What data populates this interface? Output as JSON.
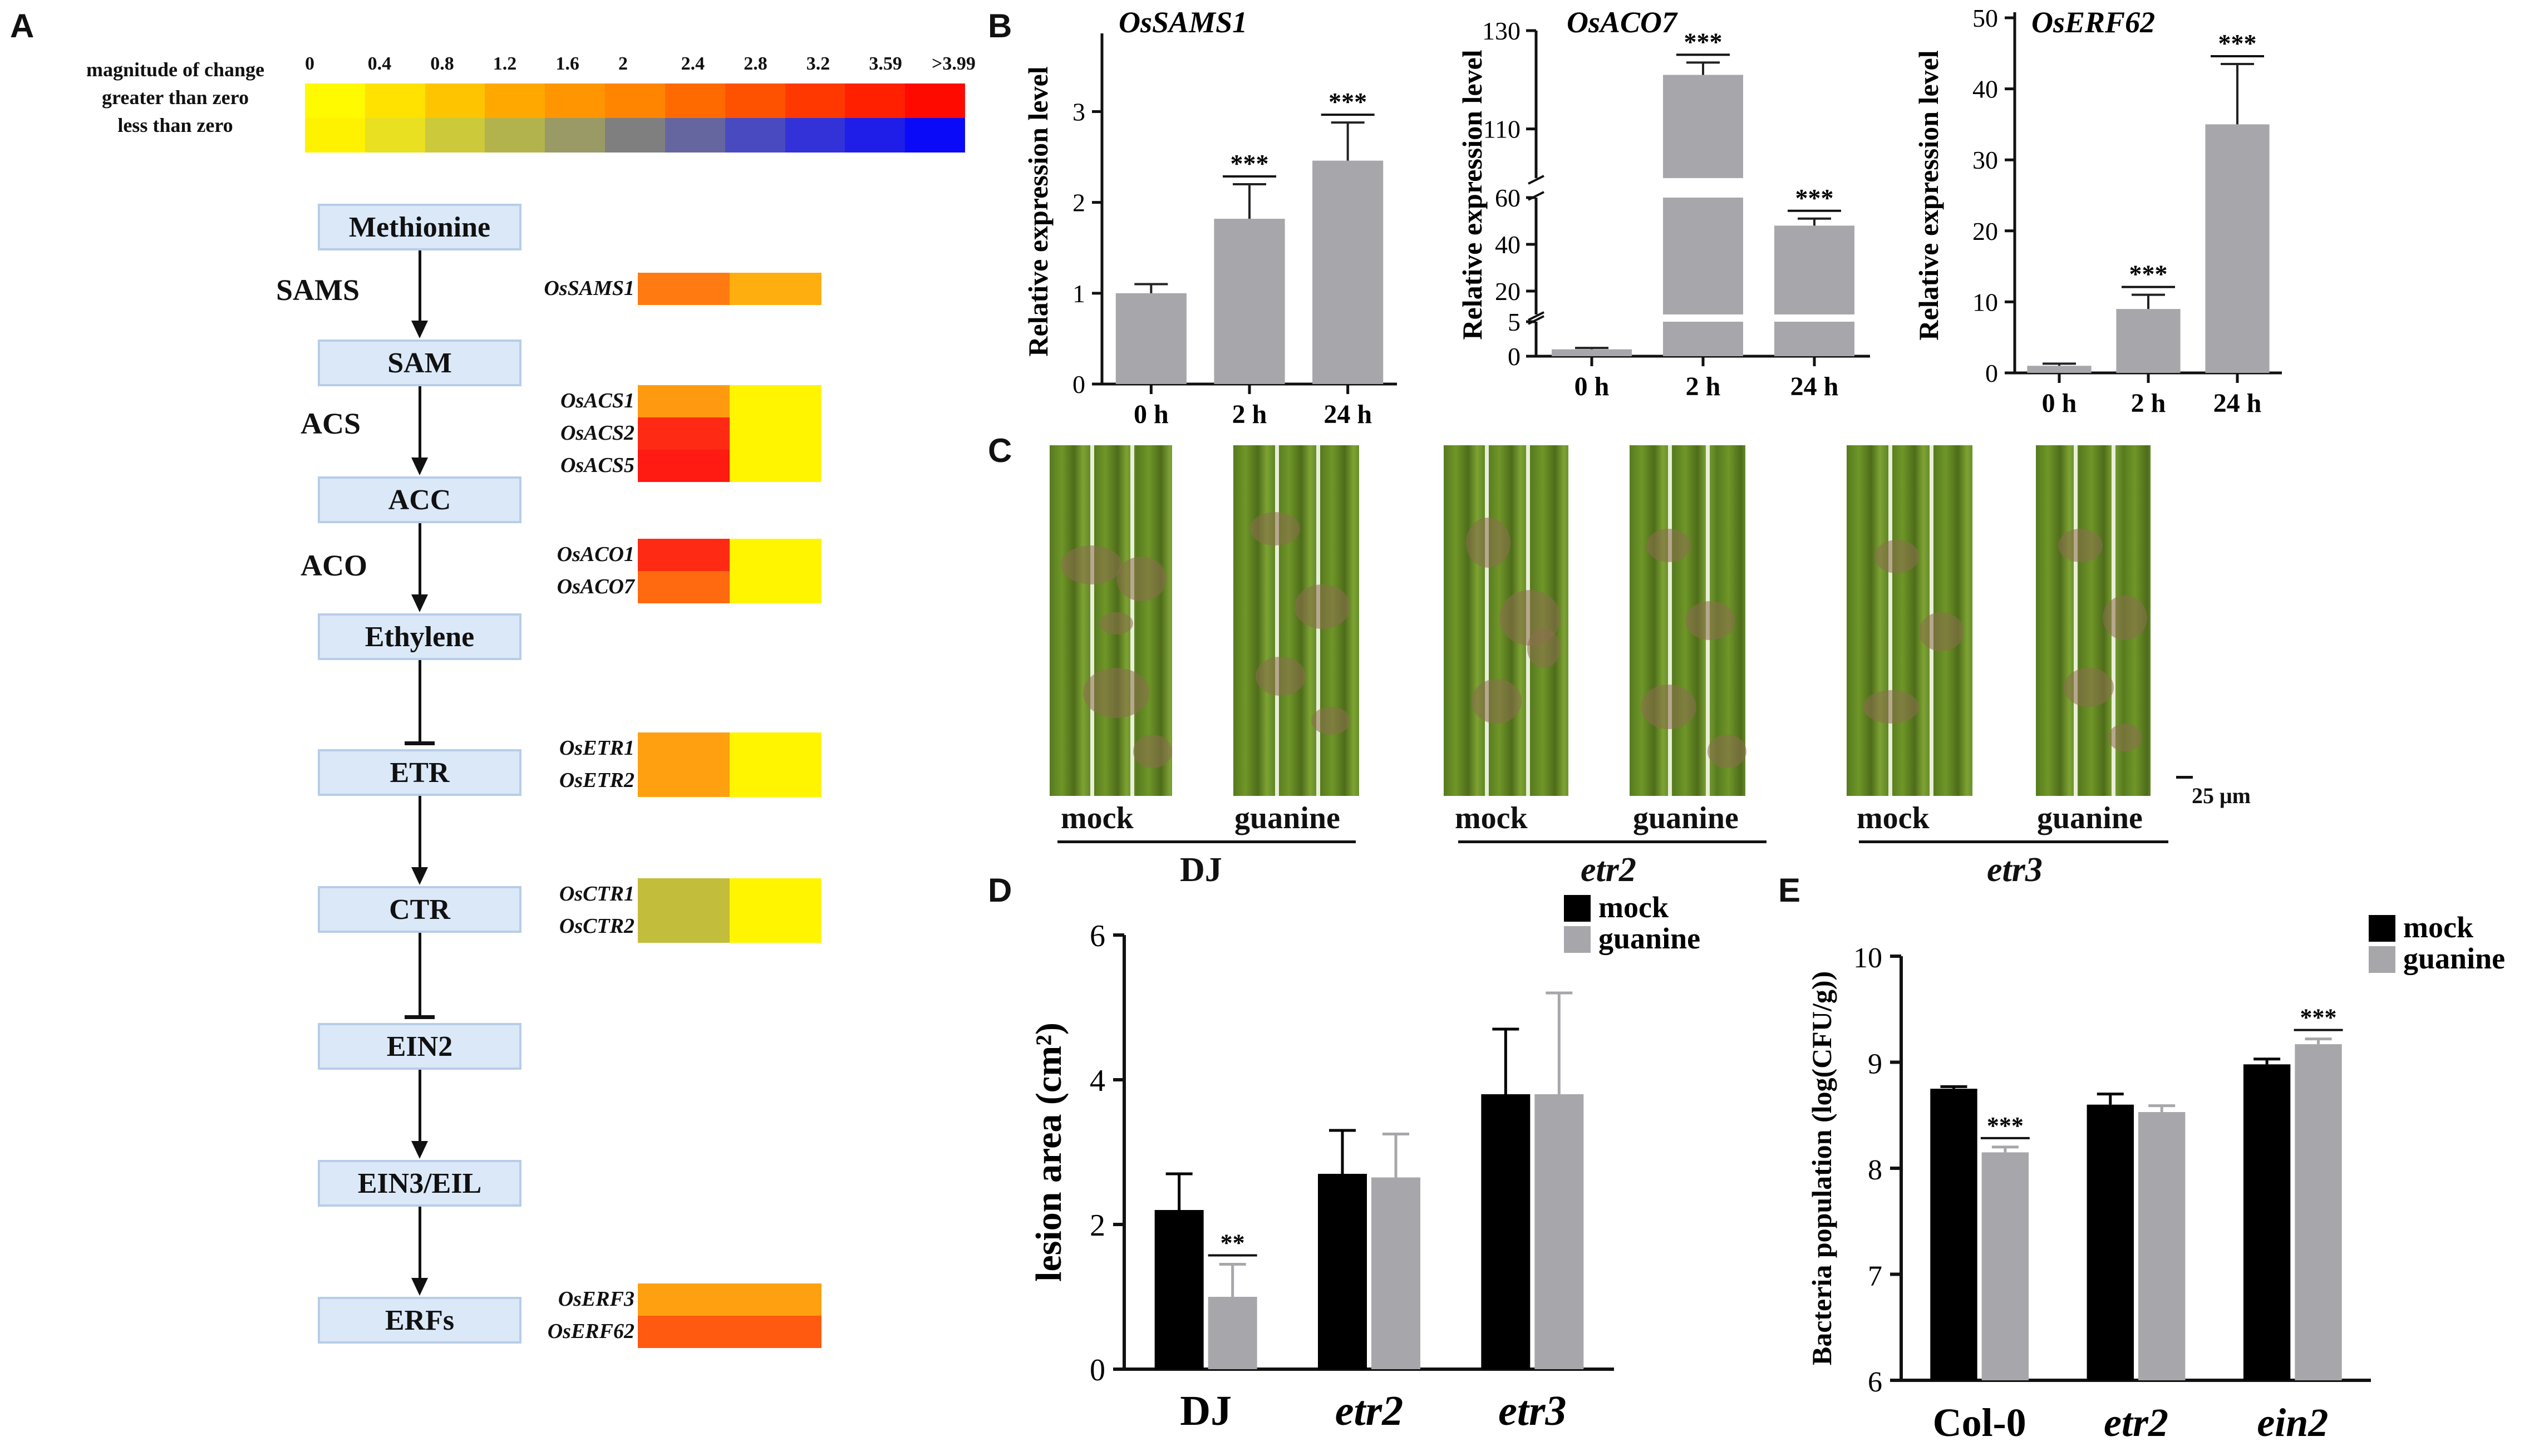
{
  "panels": {
    "a": "A",
    "b": "B",
    "c": "C",
    "d": "D",
    "e": "E"
  },
  "legend": {
    "title": "magnitude of change",
    "row_gt": "greater than zero",
    "row_lt": "less than zero",
    "scale": [
      "0",
      "0.4",
      "0.8",
      "1.2",
      "1.6",
      "2",
      "2.4",
      "2.8",
      "3.2",
      "3.59",
      ">3.99"
    ],
    "colors_gt": [
      "#fffa00",
      "#ffe200",
      "#ffc400",
      "#ffa800",
      "#ff9500",
      "#ff8400",
      "#ff6a00",
      "#ff5200",
      "#ff3800",
      "#ff2000",
      "#ff0a00"
    ],
    "colors_lt": [
      "#fff200",
      "#e8e020",
      "#ccc93a",
      "#b3b34e",
      "#9a9a66",
      "#7f7f80",
      "#6565a0",
      "#4a4ac0",
      "#3232d8",
      "#1e1ee8",
      "#0a0af8"
    ]
  },
  "pathway": {
    "nodes": [
      "Methionine",
      "SAM",
      "ACC",
      "Ethylene",
      "ETR",
      "CTR",
      "EIN2",
      "EIN3/EIL",
      "ERFs"
    ],
    "enzymes": [
      "SAMS",
      "ACS",
      "ACO"
    ],
    "heatmaps": [
      {
        "genes": [
          "OsSAMS1"
        ],
        "colors": [
          [
            "#ff7a10",
            "#ffae10"
          ]
        ]
      },
      {
        "genes": [
          "OsACS1",
          "OsACS2",
          "OsACS5"
        ],
        "colors": [
          [
            "#ff9a10",
            "#fff500"
          ],
          [
            "#ff2a14",
            "#fff500"
          ],
          [
            "#ff1a12",
            "#fff500"
          ]
        ]
      },
      {
        "genes": [
          "OsACO1",
          "OsACO7"
        ],
        "colors": [
          [
            "#ff2a14",
            "#fff500"
          ],
          [
            "#ff6a10",
            "#fff500"
          ]
        ]
      },
      {
        "genes": [
          "OsETR1",
          "OsETR2"
        ],
        "colors": [
          [
            "#ffa010",
            "#fff500"
          ],
          [
            "#ffa010",
            "#fff500"
          ]
        ]
      },
      {
        "genes": [
          "OsCTR1",
          "OsCTR2"
        ],
        "colors": [
          [
            "#c3bd3c",
            "#fff500"
          ],
          [
            "#c3bd3c",
            "#fff500"
          ]
        ]
      },
      {
        "genes": [
          "OsERF3",
          "OsERF62"
        ],
        "colors": [
          [
            "#ffa010",
            "#ffa010"
          ],
          [
            "#ff5a10",
            "#ff5a10"
          ]
        ]
      }
    ]
  },
  "panel_c": {
    "treatments": [
      "mock",
      "guanine"
    ],
    "groups": [
      "DJ",
      "etr2",
      "etr3"
    ],
    "scale_bar": "25 μm"
  },
  "chart_data": [
    {
      "id": "b1",
      "type": "bar",
      "title": "OsSAMS1",
      "ylabel": "Relative expression level",
      "categories": [
        "0 h",
        "2 h",
        "24 h"
      ],
      "values": [
        1.0,
        1.82,
        2.46
      ],
      "errors": [
        0.1,
        0.38,
        0.42
      ],
      "significance": [
        "",
        "***",
        "***"
      ],
      "ylim": [
        0,
        3.8
      ],
      "yticks": [
        0,
        1,
        2,
        3
      ],
      "color": "#a7a7ab"
    },
    {
      "id": "b2",
      "type": "bar",
      "title": "OsACO7",
      "ylabel": "Relative expression level",
      "categories": [
        "0 h",
        "2 h",
        "24 h"
      ],
      "values": [
        1.0,
        121.0,
        48.0
      ],
      "errors": [
        0.2,
        2.5,
        3.0
      ],
      "significance": [
        "",
        "***",
        "***"
      ],
      "axis_break": {
        "segments": [
          [
            0,
            5
          ],
          [
            10,
            60
          ],
          [
            100,
            130
          ]
        ]
      },
      "yticks": [
        0,
        5,
        20,
        40,
        60,
        110,
        130
      ],
      "color": "#a7a7ab"
    },
    {
      "id": "b3",
      "type": "bar",
      "title": "OsERF62",
      "ylabel": "Relative expression level",
      "categories": [
        "0 h",
        "2 h",
        "24 h"
      ],
      "values": [
        1.0,
        9.0,
        35.0
      ],
      "errors": [
        0.3,
        2.0,
        8.5
      ],
      "significance": [
        "",
        "***",
        "***"
      ],
      "ylim": [
        0,
        50
      ],
      "yticks": [
        0,
        10,
        20,
        30,
        40,
        50
      ],
      "color": "#a7a7ab"
    },
    {
      "id": "d",
      "type": "bar",
      "title": "",
      "ylabel": "lesion area (cm²)",
      "categories": [
        "DJ",
        "etr2",
        "etr3"
      ],
      "series": [
        {
          "name": "mock",
          "color": "#000000",
          "values": [
            2.2,
            2.7,
            3.8
          ],
          "errors": [
            0.5,
            0.6,
            0.9
          ]
        },
        {
          "name": "guanine",
          "color": "#a7a7ab",
          "values": [
            1.0,
            2.65,
            3.8
          ],
          "errors": [
            0.45,
            0.6,
            1.4
          ]
        }
      ],
      "significance": [
        "**",
        "",
        ""
      ],
      "ylim": [
        0,
        6
      ],
      "yticks": [
        0,
        2,
        4,
        6
      ],
      "legend": "top-right"
    },
    {
      "id": "e",
      "type": "bar",
      "title": "",
      "ylabel": "Bacteria population (log(CFU/g))",
      "categories": [
        "Col-0",
        "etr2",
        "ein2"
      ],
      "series": [
        {
          "name": "mock",
          "color": "#000000",
          "values": [
            8.75,
            8.6,
            8.98
          ],
          "errors": [
            0.02,
            0.1,
            0.05
          ]
        },
        {
          "name": "guanine",
          "color": "#a7a7ab",
          "values": [
            8.15,
            8.53,
            9.17
          ],
          "errors": [
            0.05,
            0.06,
            0.05
          ]
        }
      ],
      "significance": [
        "***",
        "",
        "***"
      ],
      "ylim": [
        6,
        10
      ],
      "yticks": [
        6,
        7,
        8,
        9,
        10
      ],
      "legend": "top-right"
    }
  ]
}
